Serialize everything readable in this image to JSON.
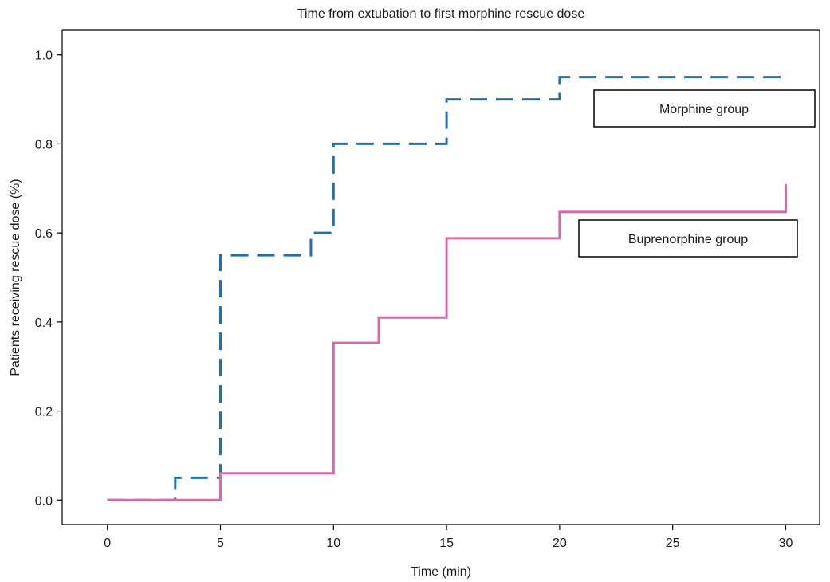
{
  "chart_data": {
    "type": "line",
    "subtype": "step",
    "title": "Time from extubation to first morphine rescue dose",
    "xlabel": "Time (min)",
    "ylabel": "Patients receiving rescue dose (%)",
    "xlim": [
      -2,
      31.5
    ],
    "ylim": [
      -0.055,
      1.055
    ],
    "x_ticks": [
      0,
      5,
      10,
      15,
      20,
      25,
      30
    ],
    "y_ticks": [
      0.0,
      0.2,
      0.4,
      0.6,
      0.8,
      1.0
    ],
    "x_tick_labels": [
      "0",
      "5",
      "10",
      "15",
      "20",
      "25",
      "30"
    ],
    "y_tick_labels": [
      "0.0",
      "0.2",
      "0.4",
      "0.6",
      "0.8",
      "1.0"
    ],
    "grid": false,
    "series": [
      {
        "name": "Morphine group",
        "color": "#1f6fb4",
        "line_style": "dashed",
        "points": [
          [
            0,
            0
          ],
          [
            3,
            0
          ],
          [
            3,
            0.05
          ],
          [
            5,
            0.05
          ],
          [
            5,
            0.55
          ],
          [
            9,
            0.55
          ],
          [
            9,
            0.6
          ],
          [
            10,
            0.6
          ],
          [
            10,
            0.8
          ],
          [
            15,
            0.8
          ],
          [
            15,
            0.9
          ],
          [
            20,
            0.9
          ],
          [
            20,
            0.95
          ],
          [
            30,
            0.95
          ]
        ]
      },
      {
        "name": "Buprenorphine group",
        "color": "#d46aa8",
        "line_style": "solid",
        "points": [
          [
            0,
            0
          ],
          [
            5,
            0
          ],
          [
            5,
            0.06
          ],
          [
            10,
            0.06
          ],
          [
            10,
            0.353
          ],
          [
            12,
            0.353
          ],
          [
            12,
            0.41
          ],
          [
            15,
            0.41
          ],
          [
            15,
            0.588
          ],
          [
            20,
            0.588
          ],
          [
            20,
            0.647
          ],
          [
            30,
            0.647
          ],
          [
            30,
            0.71
          ]
        ]
      }
    ]
  }
}
